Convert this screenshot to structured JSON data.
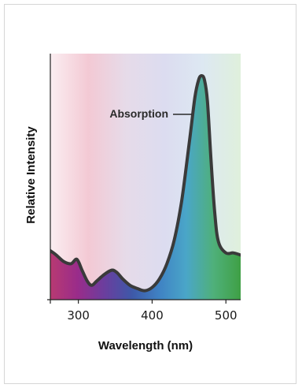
{
  "chart_data": {
    "type": "area",
    "title": "",
    "xlabel": "Wavelength (nm)",
    "ylabel": "Relative Intensity",
    "xlim": [
      262,
      520
    ],
    "ylim": [
      0,
      1
    ],
    "xticks": [
      300,
      400,
      500
    ],
    "grid": false,
    "legend": "none",
    "series": [
      {
        "annotation": "Absorption",
        "x": [
          262,
          270,
          280,
          290,
          298,
          305,
          312,
          318,
          325,
          335,
          345,
          352,
          360,
          370,
          380,
          390,
          400,
          410,
          420,
          430,
          440,
          450,
          458,
          463,
          467,
          471,
          475,
          480,
          485,
          490,
          500,
          510,
          520
        ],
        "y": [
          0.19,
          0.17,
          0.14,
          0.13,
          0.15,
          0.1,
          0.05,
          0.03,
          0.05,
          0.08,
          0.1,
          0.09,
          0.06,
          0.03,
          0.015,
          0.005,
          0.02,
          0.06,
          0.13,
          0.24,
          0.42,
          0.68,
          0.9,
          0.98,
          1.0,
          0.98,
          0.88,
          0.6,
          0.36,
          0.23,
          0.18,
          0.18,
          0.17
        ]
      }
    ],
    "background_gradient": [
      "#fbeef1",
      "#f3c9d4",
      "#e6dbe9",
      "#dcdcf0",
      "#dde8f2",
      "#dff0dc"
    ],
    "fill_gradient": [
      "#b83a72",
      "#9a2c8a",
      "#6a3e9e",
      "#3e58a8",
      "#3f82c4",
      "#4aa6c8",
      "#4fb07a",
      "#3fa045"
    ],
    "line_color": "#3a3a3a"
  }
}
